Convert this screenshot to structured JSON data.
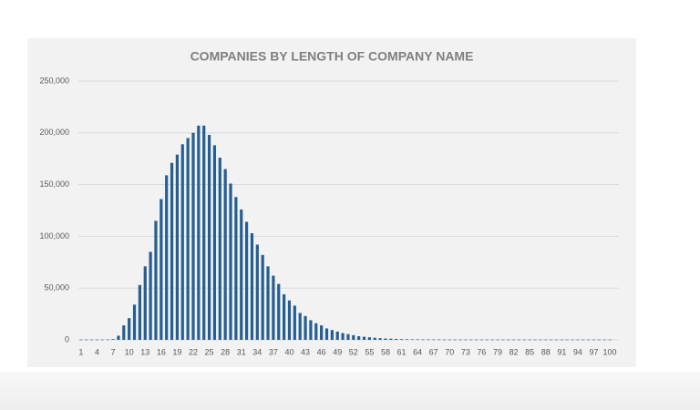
{
  "chart_data": {
    "type": "bar",
    "title": "COMPANIES BY LENGTH OF COMPANY NAME",
    "categories": [
      "1",
      null,
      null,
      "4",
      null,
      null,
      "7",
      null,
      null,
      "10",
      null,
      null,
      "13",
      null,
      null,
      "16",
      null,
      null,
      "19",
      null,
      null,
      "22",
      null,
      null,
      "25",
      null,
      null,
      "28",
      null,
      null,
      "31",
      null,
      null,
      "34",
      null,
      null,
      "37",
      null,
      null,
      "40",
      null,
      null,
      "43",
      null,
      null,
      "46",
      null,
      null,
      "49",
      null,
      null,
      "52",
      null,
      null,
      "55",
      null,
      null,
      "58",
      null,
      null,
      "61",
      null,
      null,
      "64",
      null,
      null,
      "67",
      null,
      null,
      "70",
      null,
      null,
      "73",
      null,
      null,
      "76",
      null,
      null,
      "79",
      null,
      null,
      "82",
      null,
      null,
      "85",
      null,
      null,
      "88",
      null,
      null,
      "91",
      null,
      null,
      "94",
      null,
      null,
      "97",
      null,
      null,
      "100"
    ],
    "values": [
      300,
      300,
      300,
      300,
      300,
      400,
      700,
      4000,
      14000,
      21000,
      34000,
      53000,
      71000,
      85000,
      115000,
      136000,
      159000,
      171000,
      179000,
      189000,
      195000,
      200000,
      207000,
      207000,
      198000,
      188000,
      176000,
      165000,
      151000,
      138000,
      126000,
      114000,
      103000,
      92000,
      82000,
      71000,
      62000,
      54000,
      44000,
      38000,
      33000,
      26000,
      23000,
      19000,
      16000,
      14000,
      11000,
      9500,
      8000,
      6500,
      5500,
      4500,
      3500,
      3000,
      2500,
      2000,
      1600,
      1300,
      1100,
      900,
      700,
      600,
      500,
      500,
      400,
      400,
      400,
      400,
      300,
      300,
      300,
      300,
      300,
      300,
      300,
      300,
      300,
      300,
      300,
      300,
      300,
      300,
      300,
      300,
      300,
      300,
      300,
      300,
      300,
      300,
      300,
      300,
      300,
      300,
      300,
      300,
      300,
      300,
      300,
      300
    ],
    "color": "#255e91",
    "ylim": [
      0,
      250000
    ],
    "yticks": [
      0,
      {
        "value": 50000,
        "label": "50,000"
      },
      {
        "value": 100000,
        "label": "100,000"
      },
      {
        "value": 150000,
        "label": "150,000"
      },
      {
        "value": 200000,
        "label": "200,000"
      },
      {
        "value": 250000,
        "label": "250,000"
      }
    ],
    "grid": true
  }
}
